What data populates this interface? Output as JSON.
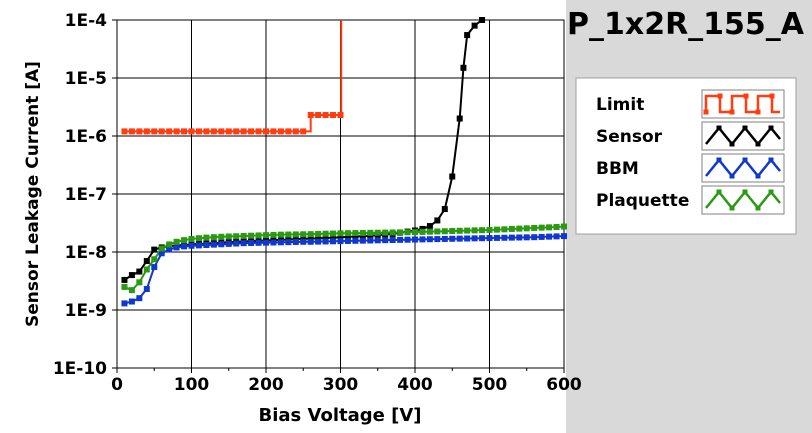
{
  "chart_data": {
    "type": "line",
    "title": "P_1x2R_155_A",
    "xlabel": "Bias Voltage [V]",
    "ylabel": "Sensor Leakage Current [A]",
    "xlim": [
      0,
      600
    ],
    "ylim": [
      1e-10,
      0.0001
    ],
    "yscale": "log",
    "grid": true,
    "legend_placement": "right",
    "x_ticks": [
      0,
      100,
      200,
      300,
      400,
      500,
      600
    ],
    "x_tick_labels": [
      "0",
      "100",
      "200",
      "300",
      "400",
      "500",
      "600"
    ],
    "y_ticks": [
      1e-10,
      1e-09,
      1e-08,
      1e-07,
      1e-06,
      1e-05,
      0.0001
    ],
    "y_tick_labels": [
      "1E-10",
      "1E-9",
      "1E-8",
      "1E-7",
      "1E-6",
      "1E-5",
      "1E-4"
    ],
    "series": [
      {
        "name": "Limit",
        "color": "#ff3d10",
        "step": true,
        "points": [
          [
            10,
            1.2e-06
          ],
          [
            20,
            1.2e-06
          ],
          [
            30,
            1.2e-06
          ],
          [
            40,
            1.2e-06
          ],
          [
            50,
            1.2e-06
          ],
          [
            60,
            1.2e-06
          ],
          [
            70,
            1.2e-06
          ],
          [
            80,
            1.2e-06
          ],
          [
            90,
            1.2e-06
          ],
          [
            100,
            1.2e-06
          ],
          [
            110,
            1.2e-06
          ],
          [
            120,
            1.2e-06
          ],
          [
            130,
            1.2e-06
          ],
          [
            140,
            1.2e-06
          ],
          [
            150,
            1.2e-06
          ],
          [
            160,
            1.2e-06
          ],
          [
            170,
            1.2e-06
          ],
          [
            180,
            1.2e-06
          ],
          [
            190,
            1.2e-06
          ],
          [
            200,
            1.2e-06
          ],
          [
            210,
            1.2e-06
          ],
          [
            220,
            1.2e-06
          ],
          [
            230,
            1.2e-06
          ],
          [
            240,
            1.2e-06
          ],
          [
            250,
            1.2e-06
          ],
          [
            260,
            2.3e-06
          ],
          [
            270,
            2.3e-06
          ],
          [
            280,
            2.3e-06
          ],
          [
            290,
            2.3e-06
          ],
          [
            300,
            2.3e-06
          ],
          [
            301,
            0.0001
          ]
        ]
      },
      {
        "name": "Sensor",
        "color": "#000000",
        "points": [
          [
            10,
            3.3e-09
          ],
          [
            20,
            4e-09
          ],
          [
            30,
            4.6e-09
          ],
          [
            40,
            7e-09
          ],
          [
            50,
            1.1e-08
          ],
          [
            60,
            1.2e-08
          ],
          [
            70,
            1.25e-08
          ],
          [
            80,
            1.3e-08
          ],
          [
            90,
            1.32e-08
          ],
          [
            100,
            1.35e-08
          ],
          [
            110,
            1.38e-08
          ],
          [
            120,
            1.4e-08
          ],
          [
            130,
            1.42e-08
          ],
          [
            140,
            1.45e-08
          ],
          [
            150,
            1.47e-08
          ],
          [
            160,
            1.5e-08
          ],
          [
            170,
            1.52e-08
          ],
          [
            180,
            1.54e-08
          ],
          [
            190,
            1.56e-08
          ],
          [
            200,
            1.58e-08
          ],
          [
            210,
            1.6e-08
          ],
          [
            220,
            1.62e-08
          ],
          [
            230,
            1.64e-08
          ],
          [
            240,
            1.66e-08
          ],
          [
            250,
            1.68e-08
          ],
          [
            260,
            1.7e-08
          ],
          [
            270,
            1.72e-08
          ],
          [
            280,
            1.74e-08
          ],
          [
            290,
            1.76e-08
          ],
          [
            300,
            1.8e-08
          ],
          [
            310,
            1.82e-08
          ],
          [
            320,
            1.85e-08
          ],
          [
            330,
            1.88e-08
          ],
          [
            340,
            1.9e-08
          ],
          [
            350,
            1.95e-08
          ],
          [
            360,
            2e-08
          ],
          [
            370,
            2.05e-08
          ],
          [
            380,
            2.15e-08
          ],
          [
            390,
            2.25e-08
          ],
          [
            400,
            2.35e-08
          ],
          [
            410,
            2.5e-08
          ],
          [
            420,
            2.8e-08
          ],
          [
            430,
            3.5e-08
          ],
          [
            440,
            5.5e-08
          ],
          [
            450,
            2e-07
          ],
          [
            460,
            2e-06
          ],
          [
            465,
            1.5e-05
          ],
          [
            470,
            5.5e-05
          ],
          [
            480,
            8e-05
          ],
          [
            490,
            0.0001
          ]
        ]
      },
      {
        "name": "BBM",
        "color": "#1038d0",
        "points": [
          [
            10,
            1.3e-09
          ],
          [
            20,
            1.4e-09
          ],
          [
            30,
            1.6e-09
          ],
          [
            40,
            2.3e-09
          ],
          [
            50,
            5.5e-09
          ],
          [
            60,
            9.5e-09
          ],
          [
            70,
            1.1e-08
          ],
          [
            80,
            1.2e-08
          ],
          [
            90,
            1.25e-08
          ],
          [
            100,
            1.28e-08
          ],
          [
            110,
            1.3e-08
          ],
          [
            120,
            1.32e-08
          ],
          [
            130,
            1.34e-08
          ],
          [
            140,
            1.36e-08
          ],
          [
            150,
            1.38e-08
          ],
          [
            160,
            1.4e-08
          ],
          [
            170,
            1.42e-08
          ],
          [
            180,
            1.43e-08
          ],
          [
            190,
            1.44e-08
          ],
          [
            200,
            1.45e-08
          ],
          [
            210,
            1.46e-08
          ],
          [
            220,
            1.47e-08
          ],
          [
            230,
            1.48e-08
          ],
          [
            240,
            1.49e-08
          ],
          [
            250,
            1.5e-08
          ],
          [
            260,
            1.5e-08
          ],
          [
            270,
            1.51e-08
          ],
          [
            280,
            1.52e-08
          ],
          [
            290,
            1.53e-08
          ],
          [
            300,
            1.54e-08
          ],
          [
            310,
            1.55e-08
          ],
          [
            320,
            1.56e-08
          ],
          [
            330,
            1.57e-08
          ],
          [
            340,
            1.58e-08
          ],
          [
            350,
            1.59e-08
          ],
          [
            360,
            1.6e-08
          ],
          [
            370,
            1.61e-08
          ],
          [
            380,
            1.62e-08
          ],
          [
            390,
            1.63e-08
          ],
          [
            400,
            1.64e-08
          ],
          [
            410,
            1.65e-08
          ],
          [
            420,
            1.66e-08
          ],
          [
            430,
            1.67e-08
          ],
          [
            440,
            1.68e-08
          ],
          [
            450,
            1.69e-08
          ],
          [
            460,
            1.7e-08
          ],
          [
            470,
            1.71e-08
          ],
          [
            480,
            1.72e-08
          ],
          [
            490,
            1.73e-08
          ],
          [
            500,
            1.74e-08
          ],
          [
            510,
            1.75e-08
          ],
          [
            520,
            1.76e-08
          ],
          [
            530,
            1.77e-08
          ],
          [
            540,
            1.78e-08
          ],
          [
            550,
            1.79e-08
          ],
          [
            560,
            1.8e-08
          ],
          [
            570,
            1.82e-08
          ],
          [
            580,
            1.84e-08
          ],
          [
            590,
            1.86e-08
          ],
          [
            600,
            1.88e-08
          ]
        ]
      },
      {
        "name": "Plaquette",
        "color": "#2a9a10",
        "points": [
          [
            10,
            2.5e-09
          ],
          [
            20,
            2.2e-09
          ],
          [
            30,
            3e-09
          ],
          [
            40,
            5e-09
          ],
          [
            50,
            7.5e-09
          ],
          [
            60,
            1.15e-08
          ],
          [
            70,
            1.35e-08
          ],
          [
            80,
            1.5e-08
          ],
          [
            90,
            1.6e-08
          ],
          [
            100,
            1.68e-08
          ],
          [
            110,
            1.73e-08
          ],
          [
            120,
            1.77e-08
          ],
          [
            130,
            1.8e-08
          ],
          [
            140,
            1.83e-08
          ],
          [
            150,
            1.85e-08
          ],
          [
            160,
            1.87e-08
          ],
          [
            170,
            1.89e-08
          ],
          [
            180,
            1.91e-08
          ],
          [
            190,
            1.93e-08
          ],
          [
            200,
            1.95e-08
          ],
          [
            210,
            1.97e-08
          ],
          [
            220,
            1.99e-08
          ],
          [
            230,
            2e-08
          ],
          [
            240,
            2.01e-08
          ],
          [
            250,
            2.02e-08
          ],
          [
            260,
            2.03e-08
          ],
          [
            270,
            2.05e-08
          ],
          [
            280,
            2.07e-08
          ],
          [
            290,
            2.08e-08
          ],
          [
            300,
            2.1e-08
          ],
          [
            310,
            2.11e-08
          ],
          [
            320,
            2.12e-08
          ],
          [
            330,
            2.13e-08
          ],
          [
            340,
            2.14e-08
          ],
          [
            350,
            2.15e-08
          ],
          [
            360,
            2.16e-08
          ],
          [
            370,
            2.17e-08
          ],
          [
            380,
            2.18e-08
          ],
          [
            390,
            2.19e-08
          ],
          [
            400,
            2.2e-08
          ],
          [
            410,
            2.22e-08
          ],
          [
            420,
            2.24e-08
          ],
          [
            430,
            2.26e-08
          ],
          [
            440,
            2.28e-08
          ],
          [
            450,
            2.3e-08
          ],
          [
            460,
            2.32e-08
          ],
          [
            470,
            2.34e-08
          ],
          [
            480,
            2.36e-08
          ],
          [
            490,
            2.38e-08
          ],
          [
            500,
            2.4e-08
          ],
          [
            510,
            2.43e-08
          ],
          [
            520,
            2.46e-08
          ],
          [
            530,
            2.5e-08
          ],
          [
            540,
            2.53e-08
          ],
          [
            550,
            2.56e-08
          ],
          [
            560,
            2.6e-08
          ],
          [
            570,
            2.63e-08
          ],
          [
            580,
            2.66e-08
          ],
          [
            590,
            2.7e-08
          ],
          [
            600,
            2.75e-08
          ]
        ]
      }
    ]
  }
}
